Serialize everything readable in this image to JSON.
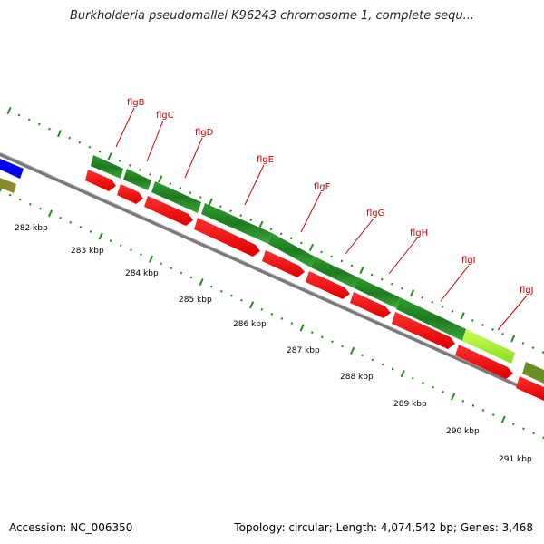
{
  "title": "Burkholderia pseudomallei K96243 chromosome 1, complete sequ...",
  "footer": {
    "accession": "Accession: NC_006350",
    "topology": "Topology: circular; Length: 4,074,542 bp; Genes: 3,468"
  },
  "scale_labels": [
    "282 kbp",
    "283 kbp",
    "284 kbp",
    "285 kbp",
    "286 kbp",
    "287 kbp",
    "288 kbp",
    "289 kbp",
    "290 kbp",
    "291 kbp"
  ],
  "genes": [
    "flgB",
    "flgC",
    "flgD",
    "flgE",
    "flgF",
    "flgG",
    "flgH",
    "flgI",
    "flgJ"
  ],
  "colors": {
    "cds": "#ff0000",
    "gene": "#228b22",
    "gene_highlight": "#99ee33",
    "backbone": "#888888",
    "ticks": "#228b22",
    "label": "#cc0000",
    "neighbor_blue": "#0000ee",
    "neighbor_olive": "#6b8e23"
  }
}
